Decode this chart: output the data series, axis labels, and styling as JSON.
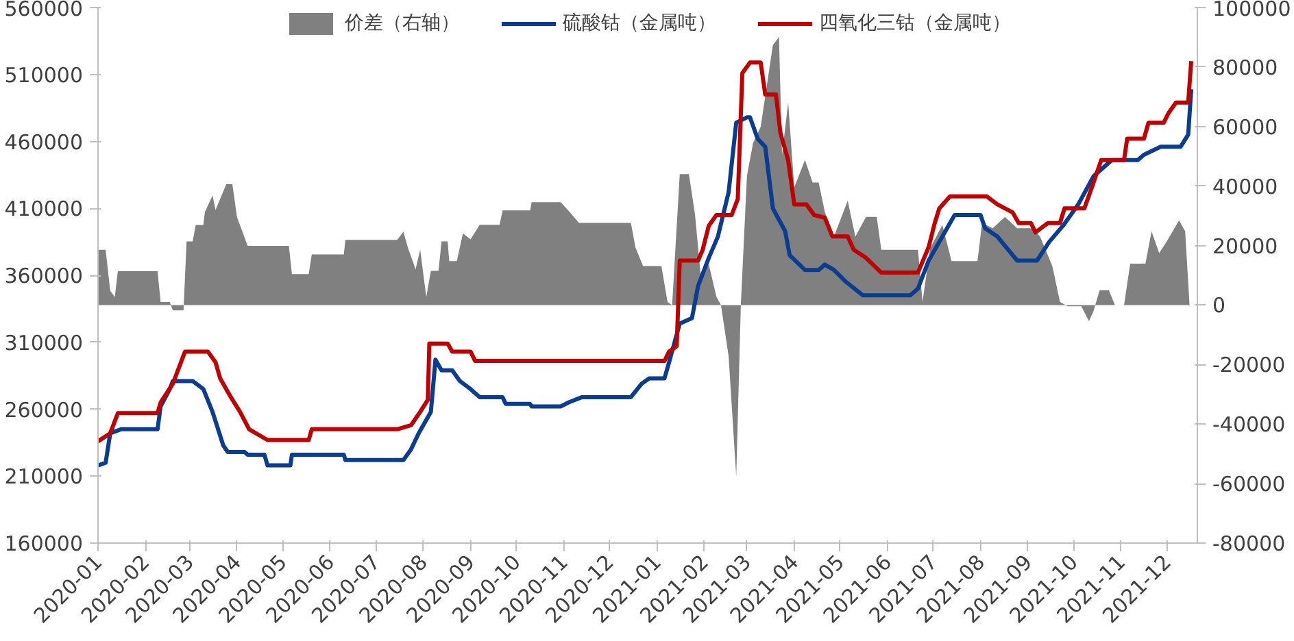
{
  "chart_data": {
    "type": "line",
    "legend": "top",
    "xlim": [
      "2020-01-01",
      "2021-12-21"
    ],
    "xticks": [
      "2020-01",
      "2020-02",
      "2020-03",
      "2020-04",
      "2020-05",
      "2020-06",
      "2020-07",
      "2020-08",
      "2020-09",
      "2020-10",
      "2020-11",
      "2020-12",
      "2021-01",
      "2021-02",
      "2021-03",
      "2021-04",
      "2021-05",
      "2021-06",
      "2021-07",
      "2021-08",
      "2021-09",
      "2021-10",
      "2021-11",
      "2021-12"
    ],
    "ylim": [
      160000,
      560000
    ],
    "yticks": [
      160000,
      210000,
      260000,
      310000,
      360000,
      410000,
      460000,
      510000,
      560000
    ],
    "y2lim": [
      -80000,
      100000
    ],
    "y2ticks": [
      -80000,
      -60000,
      -40000,
      -20000,
      0,
      20000,
      40000,
      60000,
      80000,
      100000
    ],
    "series": [
      {
        "name": "价差（右轴）",
        "type": "area",
        "axis": "y2",
        "color": "#808080",
        "x": [
          "2020-01-01",
          "2020-01-06",
          "2020-01-09",
          "2020-01-12",
          "2020-01-14",
          "2020-02-09",
          "2020-02-11",
          "2020-02-17",
          "2020-02-19",
          "2020-02-26",
          "2020-02-28",
          "2020-03-03",
          "2020-03-05",
          "2020-03-10",
          "2020-03-11",
          "2020-03-16",
          "2020-03-18",
          "2020-03-25",
          "2020-03-29",
          "2020-04-01",
          "2020-04-08",
          "2020-05-05",
          "2020-05-07",
          "2020-05-18",
          "2020-05-20",
          "2020-06-10",
          "2020-06-11",
          "2020-07-15",
          "2020-07-19",
          "2020-07-22",
          "2020-07-27",
          "2020-07-30",
          "2020-08-03",
          "2020-08-06",
          "2020-08-11",
          "2020-08-13",
          "2020-08-17",
          "2020-08-18",
          "2020-08-23",
          "2020-08-27",
          "2020-09-01",
          "2020-09-07",
          "2020-09-20",
          "2020-09-22",
          "2020-10-10",
          "2020-10-11",
          "2020-10-30",
          "2020-11-04",
          "2020-11-11",
          "2020-12-15",
          "2020-12-18",
          "2020-12-23",
          "2021-01-04",
          "2021-01-08",
          "2021-01-11",
          "2021-01-16",
          "2021-01-22",
          "2021-01-26",
          "2021-01-30",
          "2021-02-04",
          "2021-02-09",
          "2021-02-12",
          "2021-02-17",
          "2021-02-22",
          "2021-02-25",
          "2021-03-01",
          "2021-03-05",
          "2021-03-10",
          "2021-03-18",
          "2021-03-22",
          "2021-03-24",
          "2021-03-28",
          "2021-04-01",
          "2021-04-08",
          "2021-04-13",
          "2021-04-17",
          "2021-04-21",
          "2021-04-27",
          "2021-05-06",
          "2021-05-11",
          "2021-05-18",
          "2021-05-25",
          "2021-05-28",
          "2021-06-21",
          "2021-06-24",
          "2021-06-29",
          "2021-07-07",
          "2021-07-13",
          "2021-07-30",
          "2021-08-02",
          "2021-08-09",
          "2021-08-17",
          "2021-08-25",
          "2021-09-04",
          "2021-09-09",
          "2021-09-17",
          "2021-09-22",
          "2021-09-27",
          "2021-10-06",
          "2021-10-11",
          "2021-10-14",
          "2021-10-18",
          "2021-10-24",
          "2021-10-28",
          "2021-11-03",
          "2021-11-07",
          "2021-11-17",
          "2021-11-21",
          "2021-11-26",
          "2021-12-01",
          "2021-12-09",
          "2021-12-13",
          "2021-12-16"
        ],
        "values": [
          18600,
          18600,
          4800,
          2700,
          11400,
          11400,
          1000,
          1000,
          -1800,
          -1800,
          21400,
          21400,
          26900,
          26900,
          31300,
          36800,
          32000,
          40600,
          40600,
          29600,
          19900,
          19900,
          10400,
          10400,
          17000,
          17000,
          21900,
          21900,
          24700,
          19200,
          12000,
          18600,
          2700,
          11500,
          11500,
          21400,
          21400,
          14800,
          14800,
          24100,
          22100,
          27000,
          27000,
          31800,
          31800,
          34600,
          34600,
          31800,
          27600,
          27600,
          19300,
          13100,
          13100,
          1000,
          0,
          44000,
          44000,
          30400,
          8400,
          13800,
          2800,
          0,
          -17200,
          -57700,
          0,
          43400,
          54400,
          59900,
          87400,
          90100,
          50500,
          68100,
          39500,
          48800,
          41200,
          41200,
          31300,
          23000,
          35100,
          23000,
          29600,
          29600,
          18600,
          18600,
          1100,
          19100,
          26900,
          14800,
          14800,
          27600,
          25800,
          29600,
          25800,
          25800,
          23000,
          13100,
          1100,
          -400,
          -400,
          -5400,
          -2000,
          5000,
          5000,
          0,
          0,
          13900,
          13900,
          24800,
          17500,
          21400,
          28500,
          24800,
          -1000
        ]
      },
      {
        "name": "硫酸钴（金属吨）",
        "color": "#0a3d8f",
        "x": [
          "2020-01-01",
          "2020-01-06",
          "2020-01-09",
          "2020-01-16",
          "2020-02-09",
          "2020-02-11",
          "2020-02-17",
          "2020-02-19",
          "2020-03-03",
          "2020-03-10",
          "2020-03-16",
          "2020-03-23",
          "2020-03-26",
          "2020-04-06",
          "2020-04-08",
          "2020-04-19",
          "2020-04-21",
          "2020-05-06",
          "2020-05-07",
          "2020-06-10",
          "2020-06-11",
          "2020-07-19",
          "2020-07-24",
          "2020-07-29",
          "2020-08-06",
          "2020-08-09",
          "2020-08-13",
          "2020-08-20",
          "2020-08-25",
          "2020-09-01",
          "2020-09-07",
          "2020-09-22",
          "2020-09-24",
          "2020-10-10",
          "2020-10-11",
          "2020-10-30",
          "2020-11-04",
          "2020-11-13",
          "2020-12-15",
          "2020-12-22",
          "2020-12-27",
          "2021-01-06",
          "2021-01-09",
          "2021-01-16",
          "2021-01-24",
          "2021-01-28",
          "2021-02-04",
          "2021-02-10",
          "2021-02-17",
          "2021-02-22",
          "2021-03-01",
          "2021-03-03",
          "2021-03-08",
          "2021-03-13",
          "2021-03-18",
          "2021-03-26",
          "2021-03-29",
          "2021-04-08",
          "2021-04-17",
          "2021-04-21",
          "2021-04-27",
          "2021-05-05",
          "2021-05-16",
          "2021-06-16",
          "2021-06-21",
          "2021-06-28",
          "2021-07-05",
          "2021-07-15",
          "2021-08-01",
          "2021-08-04",
          "2021-08-12",
          "2021-08-25",
          "2021-09-07",
          "2021-09-15",
          "2021-09-24",
          "2021-10-04",
          "2021-10-14",
          "2021-10-26",
          "2021-11-12",
          "2021-11-16",
          "2021-11-27",
          "2021-12-10",
          "2021-12-15",
          "2021-12-17"
        ],
        "values": [
          218000,
          220000,
          242000,
          245000,
          245000,
          262000,
          275000,
          281000,
          281000,
          275000,
          258000,
          233000,
          228000,
          228000,
          226000,
          226000,
          218000,
          218000,
          226000,
          226000,
          222000,
          222000,
          230000,
          242000,
          258000,
          297000,
          289000,
          289000,
          281000,
          275000,
          269000,
          269000,
          264000,
          264000,
          262000,
          262000,
          265000,
          269000,
          269000,
          279000,
          283000,
          283000,
          295000,
          324000,
          328000,
          352000,
          373000,
          389000,
          422000,
          474000,
          478000,
          478000,
          462000,
          456000,
          410000,
          393000,
          375000,
          364000,
          364000,
          368000,
          364000,
          355000,
          345000,
          345000,
          350000,
          371000,
          385000,
          405000,
          405000,
          395000,
          389000,
          371000,
          371000,
          385000,
          397000,
          413000,
          434000,
          446000,
          446000,
          450000,
          456000,
          456000,
          465000,
          499000
        ]
      },
      {
        "name": "四氧化三钴（金属吨）",
        "color": "#c00000",
        "x": [
          "2020-01-01",
          "2020-01-09",
          "2020-01-14",
          "2020-02-09",
          "2020-02-11",
          "2020-02-19",
          "2020-02-27",
          "2020-03-13",
          "2020-03-18",
          "2020-03-21",
          "2020-03-28",
          "2020-04-03",
          "2020-04-09",
          "2020-04-21",
          "2020-05-18",
          "2020-05-20",
          "2020-07-15",
          "2020-07-24",
          "2020-07-30",
          "2020-08-04",
          "2020-08-05",
          "2020-08-17",
          "2020-08-20",
          "2020-09-01",
          "2020-09-04",
          "2021-01-06",
          "2021-01-09",
          "2021-01-14",
          "2021-01-16",
          "2021-01-28",
          "2021-01-31",
          "2021-02-04",
          "2021-02-09",
          "2021-02-19",
          "2021-02-23",
          "2021-02-26",
          "2021-03-03",
          "2021-03-10",
          "2021-03-13",
          "2021-03-20",
          "2021-03-23",
          "2021-03-28",
          "2021-04-01",
          "2021-04-09",
          "2021-04-14",
          "2021-04-21",
          "2021-04-26",
          "2021-05-06",
          "2021-05-10",
          "2021-05-18",
          "2021-05-28",
          "2021-06-21",
          "2021-06-28",
          "2021-07-02",
          "2021-07-05",
          "2021-07-12",
          "2021-08-05",
          "2021-08-12",
          "2021-08-22",
          "2021-08-26",
          "2021-09-03",
          "2021-09-06",
          "2021-09-14",
          "2021-09-22",
          "2021-09-25",
          "2021-10-08",
          "2021-10-13",
          "2021-10-19",
          "2021-11-03",
          "2021-11-05",
          "2021-11-16",
          "2021-11-19",
          "2021-11-29",
          "2021-12-02",
          "2021-12-07",
          "2021-12-15",
          "2021-12-17"
        ],
        "values": [
          236000,
          242000,
          257000,
          257000,
          265000,
          279000,
          303000,
          303000,
          295000,
          283000,
          269000,
          258000,
          245000,
          237000,
          237000,
          245000,
          245000,
          248000,
          258000,
          267000,
          309000,
          309000,
          303000,
          303000,
          296000,
          296000,
          303000,
          307000,
          371000,
          371000,
          379000,
          397000,
          405000,
          405000,
          417000,
          511000,
          519000,
          519000,
          495000,
          495000,
          466000,
          446000,
          413000,
          413000,
          405000,
          403000,
          389000,
          389000,
          379000,
          373000,
          362000,
          362000,
          381000,
          399000,
          410000,
          419000,
          419000,
          413000,
          407000,
          399000,
          399000,
          392000,
          399000,
          399000,
          410000,
          410000,
          426000,
          446000,
          446000,
          462000,
          462000,
          474000,
          474000,
          481000,
          489000,
          489000,
          520000
        ]
      }
    ]
  }
}
